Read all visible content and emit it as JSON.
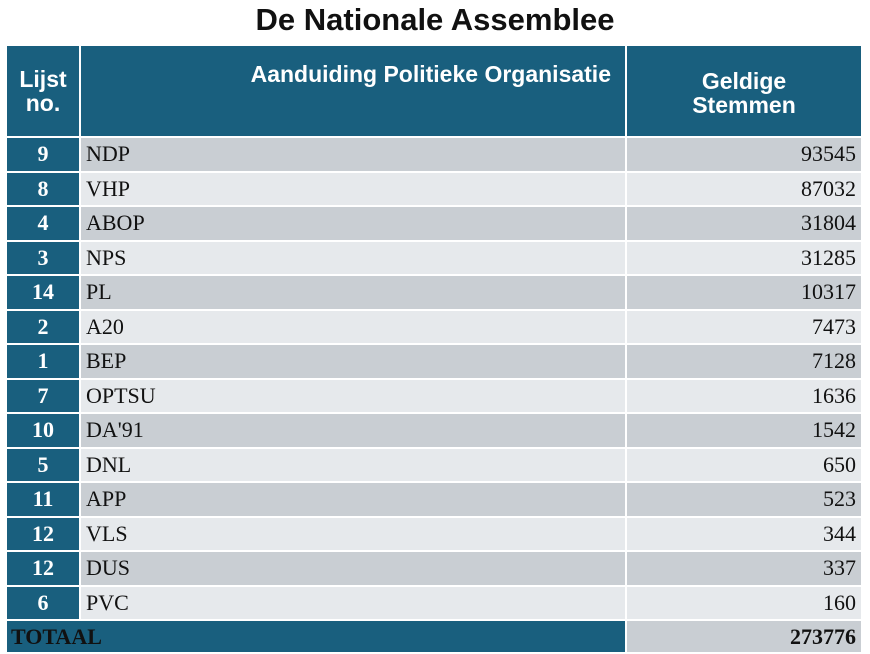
{
  "title": "De Nationale Assemblee",
  "table": {
    "headers": {
      "lijst": "Lijst no.",
      "organisatie": "Aanduiding Politieke Organisatie",
      "stemmen": "Geldige Stemmen"
    },
    "rows": [
      {
        "lijst": "9",
        "name": "NDP",
        "votes": "93545"
      },
      {
        "lijst": "8",
        "name": "VHP",
        "votes": "87032"
      },
      {
        "lijst": "4",
        "name": "ABOP",
        "votes": "31804"
      },
      {
        "lijst": "3",
        "name": "NPS",
        "votes": "31285"
      },
      {
        "lijst": "14",
        "name": "PL",
        "votes": "10317"
      },
      {
        "lijst": "2",
        "name": "A20",
        "votes": "7473"
      },
      {
        "lijst": "1",
        "name": "BEP",
        "votes": "7128"
      },
      {
        "lijst": "7",
        "name": "OPTSU",
        "votes": "1636"
      },
      {
        "lijst": "10",
        "name": "DA'91",
        "votes": "1542"
      },
      {
        "lijst": "5",
        "name": "DNL",
        "votes": "650"
      },
      {
        "lijst": "11",
        "name": "APP",
        "votes": "523"
      },
      {
        "lijst": "12",
        "name": "VLS",
        "votes": "344"
      },
      {
        "lijst": "12",
        "name": "DUS",
        "votes": "337"
      },
      {
        "lijst": "6",
        "name": "PVC",
        "votes": "160"
      }
    ],
    "total_label": "TOTAAL",
    "total_value": "273776"
  },
  "colors": {
    "header": "#195f7e",
    "row_dark": "#c9ced3",
    "row_light": "#e6e9ec"
  }
}
